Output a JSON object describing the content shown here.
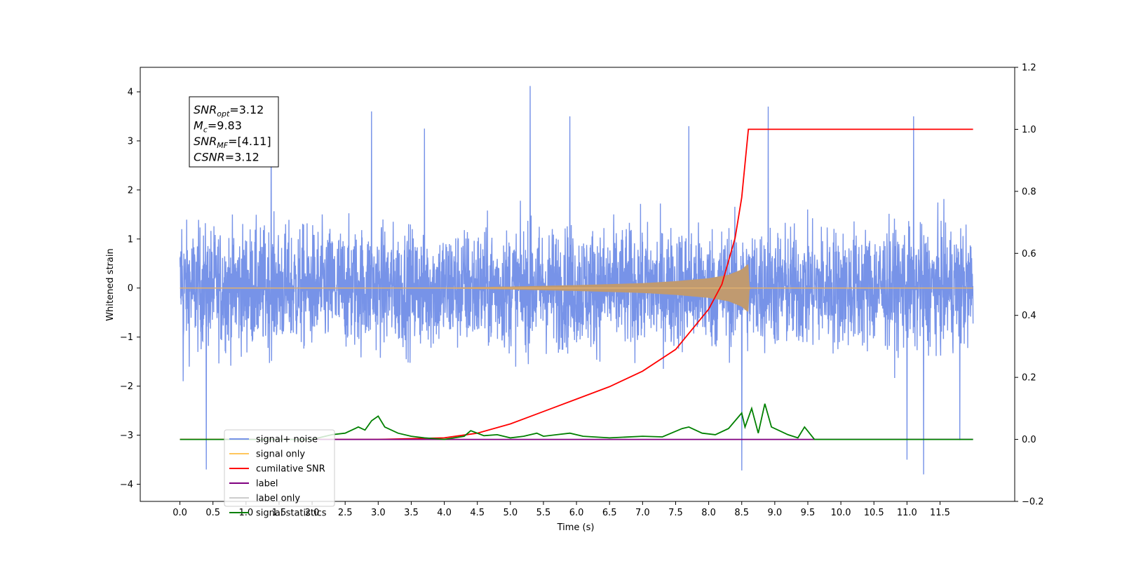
{
  "chart_data": {
    "type": "line",
    "xlabel": "Time (s)",
    "ylabel": "Whitened strain",
    "xlim": [
      -0.6,
      12.63
    ],
    "ylim": [
      -4.35,
      4.5
    ],
    "y2lim": [
      -0.2,
      1.2
    ],
    "x_ticks": [
      0.0,
      0.5,
      1.0,
      1.5,
      2.0,
      2.5,
      3.0,
      3.5,
      4.0,
      4.5,
      5.0,
      5.5,
      6.0,
      6.5,
      7.0,
      7.5,
      8.0,
      8.5,
      9.0,
      9.5,
      10.0,
      10.5,
      11.0,
      11.5
    ],
    "x_tick_labels": [
      "0.0",
      "0.5",
      "1.0",
      "1.5",
      "2.0",
      "2.5",
      "3.0",
      "3.5",
      "4.0",
      "4.5",
      "5.0",
      "5.5",
      "6.0",
      "6.5",
      "7.0",
      "7.5",
      "8.0",
      "8.5",
      "9.0",
      "9.5",
      "10.0",
      "10.5",
      "11.0",
      "11.5"
    ],
    "y_ticks": [
      -4,
      -3,
      -2,
      -1,
      0,
      1,
      2,
      3,
      4
    ],
    "y_tick_labels": [
      "−4",
      "−3",
      "−2",
      "−1",
      "0",
      "1",
      "2",
      "3",
      "4"
    ],
    "y2_ticks": [
      -0.2,
      0.0,
      0.2,
      0.4,
      0.6,
      0.8,
      1.0,
      1.2
    ],
    "y2_tick_labels": [
      "−0.2",
      "0.0",
      "0.2",
      "0.4",
      "0.6",
      "0.8",
      "1.0",
      "1.2"
    ],
    "annotation": {
      "lines": [
        {
          "base": "SNR",
          "sub": "opt",
          "value": "=3.12"
        },
        {
          "base": "M",
          "sub": "c",
          "value": "=9.83"
        },
        {
          "base": "SNR",
          "sub": "MF",
          "value": "=[4.11]"
        },
        {
          "base": "CSNR",
          "sub": "",
          "value": "=3.12"
        }
      ]
    },
    "legend": {
      "placement": "lower-left",
      "entries": [
        {
          "label": "signal+ noise",
          "color": "#7793e8"
        },
        {
          "label": "signal only",
          "color": "#ffc65c"
        },
        {
          "label": "cumilative SNR",
          "color": "#ff0000"
        },
        {
          "label": "label",
          "color": "#800080"
        },
        {
          "label": "label only",
          "color": "#cccccc"
        },
        {
          "label": "signal statistics",
          "color": "#008000"
        }
      ]
    },
    "series": [
      {
        "name": "signal+ noise",
        "axis": "left",
        "color": "#7793e8",
        "description_ranges": {
          "x_start": 0.0,
          "x_end": 12.0,
          "band": [
            -2.0,
            2.2
          ],
          "max": 4.12,
          "min": -3.8
        },
        "peaks": [
          {
            "x": 0.03,
            "y": 1.2
          },
          {
            "x": 0.05,
            "y": -1.9
          },
          {
            "x": 0.4,
            "y": -3.7
          },
          {
            "x": 1.38,
            "y": 3.5
          },
          {
            "x": 2.9,
            "y": 3.6
          },
          {
            "x": 3.7,
            "y": 3.25
          },
          {
            "x": 5.3,
            "y": 4.12
          },
          {
            "x": 5.9,
            "y": 3.5
          },
          {
            "x": 7.7,
            "y": 3.3
          },
          {
            "x": 8.5,
            "y": -3.72
          },
          {
            "x": 8.9,
            "y": 3.7
          },
          {
            "x": 11.0,
            "y": -3.5
          },
          {
            "x": 11.25,
            "y": -3.8
          },
          {
            "x": 11.1,
            "y": 3.5
          },
          {
            "x": 11.8,
            "y": -3.1
          }
        ]
      },
      {
        "name": "signal only",
        "axis": "left",
        "color": "#ffc65c",
        "envelope": {
          "x": [
            0.0,
            4.0,
            5.0,
            6.0,
            7.0,
            7.5,
            8.0,
            8.3,
            8.5,
            8.6,
            8.62,
            12.0
          ],
          "amp": [
            0.0,
            0.01,
            0.03,
            0.06,
            0.1,
            0.14,
            0.2,
            0.27,
            0.38,
            0.5,
            0.0,
            0.0
          ]
        }
      },
      {
        "name": "cumilative SNR",
        "axis": "right",
        "color": "#ff0000",
        "x": [
          0.0,
          3.0,
          4.0,
          4.5,
          5.0,
          5.5,
          6.0,
          6.5,
          7.0,
          7.5,
          8.0,
          8.2,
          8.4,
          8.5,
          8.6,
          12.0
        ],
        "values": [
          0.0,
          0.0,
          0.005,
          0.02,
          0.05,
          0.09,
          0.13,
          0.17,
          0.22,
          0.29,
          0.42,
          0.5,
          0.65,
          0.78,
          1.0,
          1.0
        ]
      },
      {
        "name": "label",
        "axis": "right",
        "color": "#800080",
        "x": [
          0.8,
          12.0
        ],
        "values": [
          0.0,
          0.0
        ]
      },
      {
        "name": "signal statistics",
        "axis": "right",
        "color": "#008000",
        "x": [
          0.0,
          2.0,
          2.3,
          2.5,
          2.7,
          2.8,
          2.9,
          3.0,
          3.1,
          3.3,
          3.5,
          3.7,
          4.0,
          4.3,
          4.4,
          4.6,
          4.8,
          5.0,
          5.2,
          5.4,
          5.5,
          5.7,
          5.9,
          6.1,
          6.5,
          7.0,
          7.3,
          7.6,
          7.7,
          7.9,
          8.1,
          8.3,
          8.5,
          8.55,
          8.65,
          8.75,
          8.85,
          8.95,
          9.05,
          9.2,
          9.35,
          9.45,
          9.6,
          12.0
        ],
        "values": [
          0.0,
          0.0,
          0.015,
          0.02,
          0.04,
          0.03,
          0.06,
          0.075,
          0.04,
          0.02,
          0.01,
          0.005,
          0.0,
          0.01,
          0.028,
          0.012,
          0.015,
          0.005,
          0.01,
          0.02,
          0.01,
          0.015,
          0.02,
          0.01,
          0.005,
          0.01,
          0.008,
          0.035,
          0.04,
          0.02,
          0.015,
          0.035,
          0.085,
          0.04,
          0.1,
          0.02,
          0.115,
          0.04,
          0.03,
          0.015,
          0.005,
          0.04,
          0.0,
          0.0
        ]
      }
    ]
  }
}
